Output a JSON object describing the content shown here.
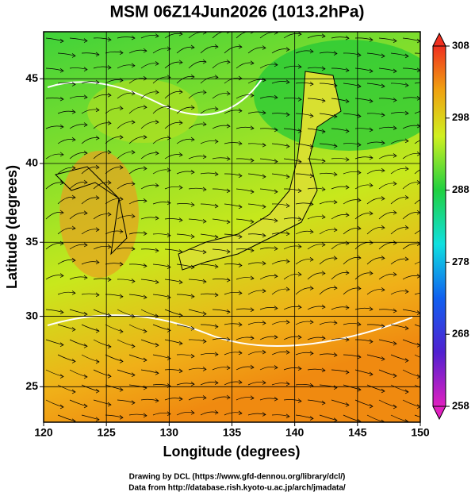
{
  "title": "MSM 06Z14Jun2026 (1013.2hPa)",
  "map": {
    "projection": "mercator",
    "x_label": "Longitude (degrees)",
    "y_label": "Latitude  (degrees)",
    "xlim": [
      120,
      150
    ],
    "xticks": [
      120,
      125,
      130,
      135,
      140,
      145,
      150
    ],
    "ylim": [
      22.4,
      47.6
    ],
    "yticks": [
      25,
      30,
      35,
      40,
      45
    ],
    "grid": true
  },
  "colorbar": {
    "lim": [
      258,
      308
    ],
    "ticks": [
      258,
      268,
      278,
      288,
      298,
      308
    ]
  },
  "credits": [
    "Drawing by DCL (https://www.gfd-dennou.org/library/dcl/)",
    "Data from http://database.rish.kyoto-u.ac.jp/arch/jmadata/"
  ]
}
